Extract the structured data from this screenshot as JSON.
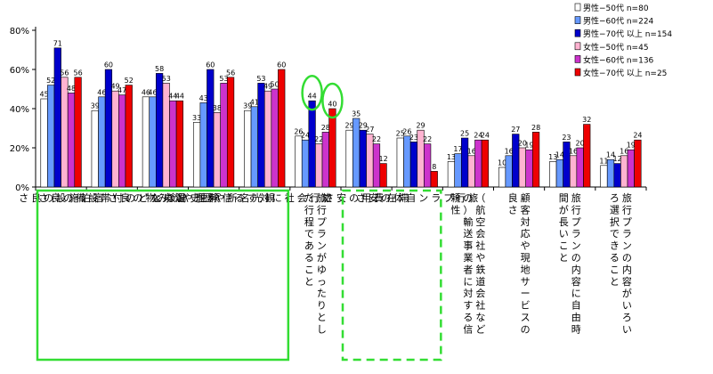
{
  "chart_data": {
    "type": "bar",
    "ylim": [
      0,
      80
    ],
    "yticks": [
      "0%",
      "20%",
      "40%",
      "60%",
      "80%"
    ],
    "categories": [
      [
        "宿",
        "泊",
        "施",
        "設",
        "の",
        "良",
        "さ"
      ],
      [
        "温",
        "泉",
        "な",
        "ど",
        "の",
        "付",
        "帯",
        "設",
        "備",
        "の",
        "良",
        "さ"
      ],
      [
        "料",
        "理",
        "や",
        "飲",
        "み",
        "物",
        "の",
        "良",
        "さ"
      ],
      [
        "観",
        "光",
        "名",
        "所",
        "や",
        "歴",
        "史",
        "跡",
        "な",
        "ど"
      ],
      [
        "旅",
        "行",
        "会",
        "社",
        "に",
        "対",
        "す",
        "る",
        "信",
        "頼",
        "性"
      ],
      [
        "旅行プランがゆったりとし",
        "た行程であること"
      ],
      [
        "滞",
        "在",
        "費",
        "用",
        "の",
        "安",
        "さ"
      ],
      [
        "旅",
        "行",
        "プ",
        "ラ",
        "ン",
        "自",
        "体",
        "の",
        "安",
        "さ"
      ],
      [
        "（航空会社や鉄道会社など",
        "の）輸送事業者に対する信",
        "頼性"
      ],
      [
        "顧客対応や現地サービスの",
        "良さ"
      ],
      [
        "旅行プランの内容に自由時",
        "間が長いこと"
      ],
      [
        "旅行プランの内容がいろい",
        "ろ選択できること"
      ]
    ],
    "series": [
      {
        "name": "男性−50代  n=80",
        "color": "#ffffff",
        "values": [
          45,
          39,
          46,
          33,
          39,
          26,
          29,
          25,
          13,
          10,
          13,
          11
        ]
      },
      {
        "name": "男性−60代  n=224",
        "color": "#6699ff",
        "values": [
          52,
          46,
          46,
          43,
          41,
          24,
          35,
          26,
          17,
          16,
          14,
          14
        ]
      },
      {
        "name": "男性−70代 以上  n=154",
        "color": "#0000cc",
        "values": [
          71,
          60,
          58,
          60,
          53,
          44,
          29,
          23,
          25,
          27,
          23,
          12
        ]
      },
      {
        "name": "女性−50代  n=45",
        "color": "#ffb3d1",
        "values": [
          56,
          49,
          53,
          38,
          49,
          22,
          27,
          29,
          16,
          20,
          16,
          16
        ]
      },
      {
        "name": "女性−60代  n=136",
        "color": "#cc33cc",
        "values": [
          48,
          47,
          44,
          53,
          50,
          28,
          22,
          22,
          24,
          19,
          20,
          19
        ]
      },
      {
        "name": "女性−70代 以上  n=25",
        "color": "#ee0000",
        "values": [
          56,
          52,
          44,
          56,
          60,
          40,
          12,
          8,
          24,
          28,
          32,
          24
        ]
      }
    ],
    "highlight_circles": [
      {
        "category": 5,
        "series": 2
      },
      {
        "category": 5,
        "series": 5
      }
    ],
    "highlight_boxes": [
      {
        "from": 0,
        "to": 4,
        "style": "solid"
      },
      {
        "from": 6,
        "to": 7,
        "style": "dashed"
      }
    ],
    "highlight_color": "#33dd33",
    "legend_position": "top-right"
  }
}
